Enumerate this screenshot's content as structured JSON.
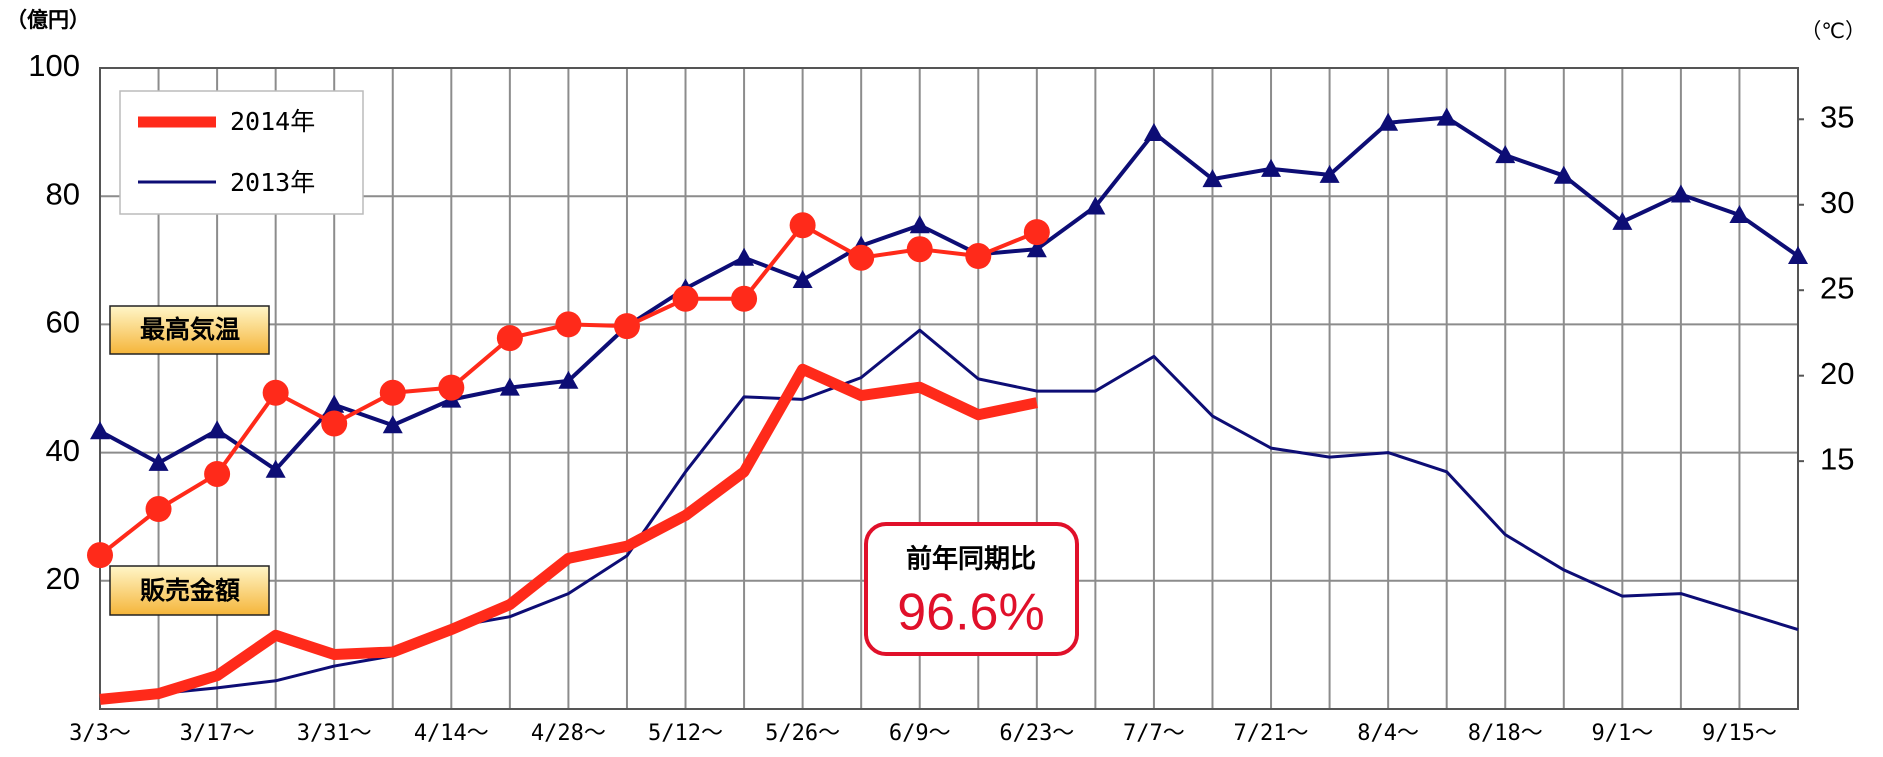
{
  "chart_data": {
    "type": "line",
    "y_label": "（億円）",
    "y2_label": "（℃）",
    "categories": [
      "3/3〜",
      null,
      "3/17〜",
      null,
      "3/31〜",
      null,
      "4/14〜",
      null,
      "4/28〜",
      null,
      "5/12〜",
      null,
      "5/26〜",
      null,
      "6/9〜",
      null,
      "6/23〜",
      null,
      "7/7〜",
      null,
      "7/21〜",
      null,
      "8/4〜",
      null,
      "8/18〜",
      null,
      "9/1〜",
      null,
      "9/15〜",
      null
    ],
    "ylim": [
      0,
      100
    ],
    "yticks": [
      20,
      40,
      60,
      80,
      100
    ],
    "y2lim": [
      0.5,
      38
    ],
    "y2ticks": [
      15,
      20,
      25,
      30,
      35
    ],
    "grid": true,
    "legend": "upper left",
    "series": [
      {
        "name": "2014年",
        "color": "#ff2a1a",
        "values": [
          1.5,
          2.4,
          5.2,
          11.5,
          8.5,
          8.9,
          12.4,
          16.3,
          23.5,
          25.4,
          30.2,
          37,
          53,
          48.9,
          50.2,
          45.9,
          47.8,
          null,
          null,
          null,
          null,
          null,
          null,
          null,
          null,
          null,
          null,
          null,
          null,
          null
        ]
      },
      {
        "name": "2013年",
        "color": "#0d0d75",
        "values": [
          1.5,
          2.4,
          3.3,
          4.4,
          6.7,
          8.3,
          12.8,
          14.4,
          18,
          23.9,
          37,
          48.7,
          48.3,
          51.7,
          59.1,
          51.5,
          49.6,
          49.6,
          55,
          45.7,
          40.7,
          39.3,
          40,
          37,
          27.2,
          21.7,
          17.6,
          18,
          15.2,
          12.4
        ]
      },
      {
        "color": "#ff2a1a",
        "axis": "y2",
        "marker": "circle",
        "values": [
          9.5,
          12.2,
          14.25,
          19,
          17.2,
          19,
          19.3,
          22.2,
          23,
          22.9,
          24.5,
          24.5,
          28.8,
          26.9,
          27.4,
          27,
          28.4,
          null,
          null,
          null,
          null,
          null,
          null,
          null,
          null,
          null,
          null,
          null,
          null,
          null
        ]
      },
      {
        "color": "#0d0d75",
        "axis": "y2",
        "marker": "triangle",
        "values": [
          16.75,
          14.9,
          16.8,
          14.5,
          18.3,
          17.1,
          18.6,
          19.3,
          19.7,
          22.9,
          25.1,
          26.9,
          25.6,
          27.6,
          28.8,
          27.1,
          27.4,
          29.9,
          34.2,
          31.5,
          32.1,
          31.75,
          34.8,
          35.1,
          32.9,
          31.7,
          29,
          30.6,
          29.4,
          27
        ]
      }
    ],
    "annotations": [
      "最高気温",
      "販売金額",
      "前年同期比",
      "96.6%"
    ]
  }
}
